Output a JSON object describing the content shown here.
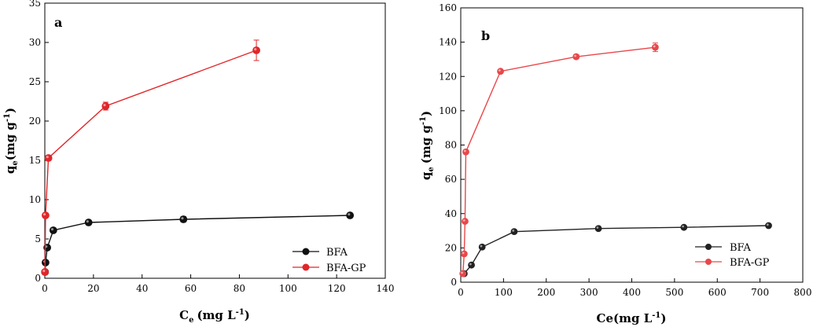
{
  "chart_data": [
    {
      "type": "line",
      "panel_label": "a",
      "xlabel": "C",
      "xlabel_sub": "e",
      "xlabel_units": "(mg L",
      "xlabel_sup": "-1",
      "xlabel_close": ")",
      "ylabel": "q",
      "ylabel_sub": "e",
      "ylabel_units": "(mg g",
      "ylabel_sup": "-1",
      "ylabel_close": ")",
      "xlim": [
        0,
        140
      ],
      "ylim": [
        0,
        35
      ],
      "xticks": [
        0,
        20,
        40,
        60,
        80,
        100,
        120,
        140
      ],
      "yticks": [
        0,
        5,
        10,
        15,
        20,
        25,
        30,
        35
      ],
      "grid": false,
      "legend_position": "bottom-right",
      "series": [
        {
          "name": "BFA",
          "color": "#111111",
          "x": [
            0.1,
            0.3,
            1.0,
            3.5,
            18,
            57,
            125.5
          ],
          "y": [
            0.8,
            2.0,
            3.9,
            6.1,
            7.1,
            7.5,
            8.0
          ],
          "err": [
            0.1,
            0.1,
            0.1,
            0.2,
            0.25,
            0.35,
            0.2
          ]
        },
        {
          "name": "BFA-GP",
          "color": "#e0262a",
          "x": [
            0.05,
            0.3,
            1.5,
            25,
            87
          ],
          "y": [
            0.8,
            8.0,
            15.3,
            21.9,
            29.0
          ],
          "err": [
            0.1,
            0.1,
            0.2,
            0.5,
            1.3
          ]
        }
      ]
    },
    {
      "type": "line",
      "panel_label": "b",
      "xlabel": "Ce(mg L",
      "xlabel_sup": "-1",
      "xlabel_close": ")",
      "ylabel": "q",
      "ylabel_sub": "e",
      "ylabel_units": "(mg g",
      "ylabel_sup": "-1",
      "ylabel_close": ")",
      "xlim": [
        0,
        800
      ],
      "ylim": [
        0,
        160
      ],
      "xticks": [
        0,
        100,
        200,
        300,
        400,
        500,
        600,
        700,
        800
      ],
      "yticks": [
        0,
        20,
        40,
        60,
        80,
        100,
        120,
        140,
        160
      ],
      "grid": false,
      "legend_position": "bottom-right",
      "series": [
        {
          "name": "BFA",
          "color": "#222222",
          "x": [
            8,
            25,
            50,
            125,
            322,
            522,
            720
          ],
          "y": [
            5,
            10,
            20.5,
            29.5,
            31.3,
            32,
            33
          ],
          "err": [
            0.5,
            0.5,
            0.6,
            0.6,
            0.6,
            0.6,
            0.6
          ]
        },
        {
          "name": "BFA-GP",
          "color": "#e8474a",
          "x": [
            5,
            8,
            10,
            12,
            93,
            270,
            455
          ],
          "y": [
            5,
            16.5,
            35.5,
            76,
            123,
            131.5,
            137
          ],
          "err": [
            0.5,
            0.8,
            0.8,
            0.8,
            1.0,
            1.2,
            2.5
          ]
        }
      ]
    }
  ]
}
